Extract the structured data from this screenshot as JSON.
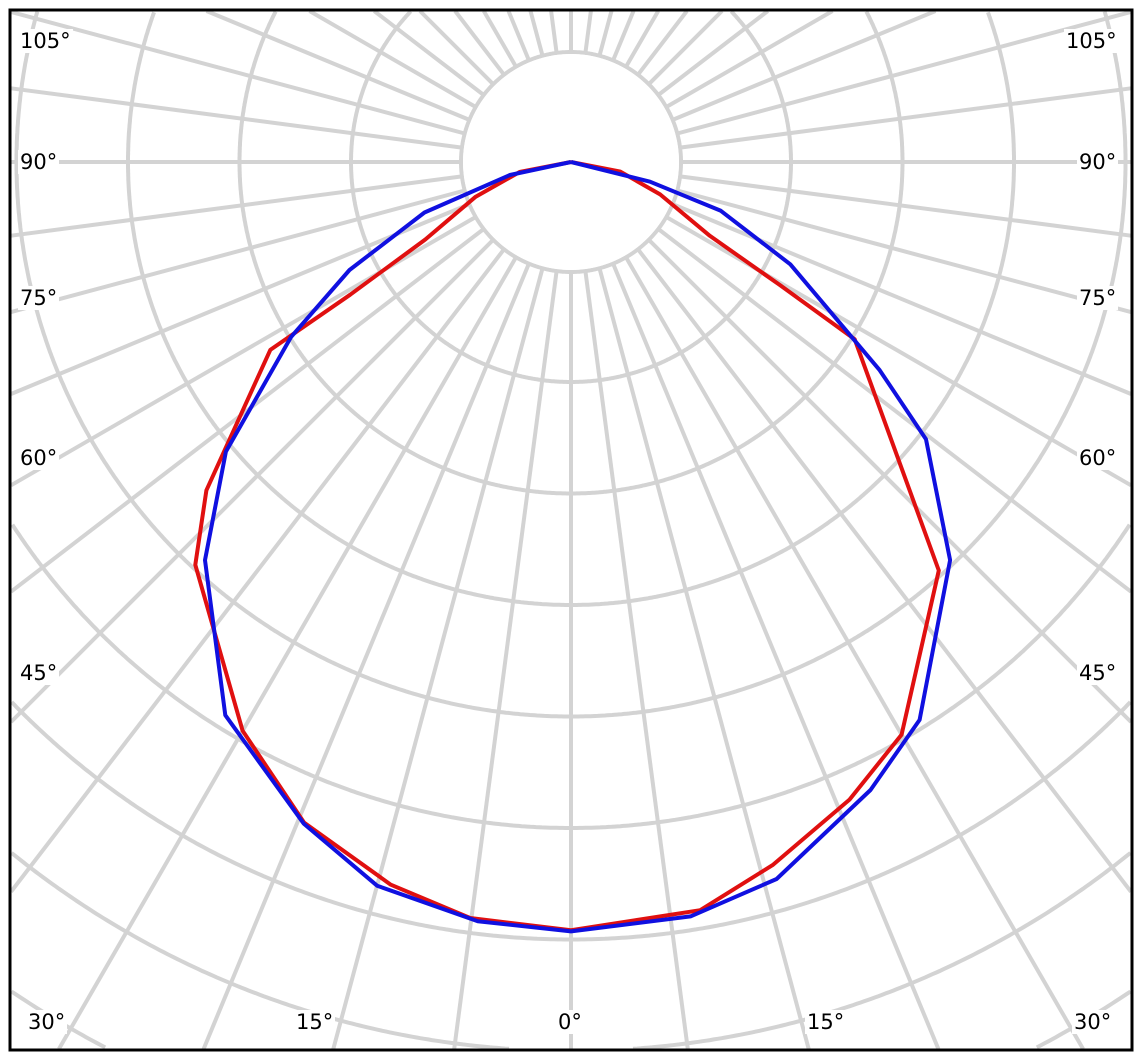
{
  "chart_data": {
    "type": "polar-line",
    "title": "",
    "grid": true,
    "angle_unit": "degrees",
    "angle_labels_left": [
      "105°",
      "90°",
      "75°",
      "60°",
      "45°"
    ],
    "angle_labels_right": [
      "105°",
      "90°",
      "75°",
      "60°",
      "45°"
    ],
    "angle_labels_bottom": [
      "30°",
      "15°",
      "0°",
      "15°",
      "30°"
    ],
    "series": [
      {
        "color": "#e01010",
        "points": [
          [
            -90,
            0
          ],
          [
            -79,
            0.47
          ],
          [
            -70,
            0.91
          ],
          [
            -62,
            1.48
          ],
          [
            -59,
            2.31
          ],
          [
            -58,
            3.18
          ],
          [
            -48,
            4.4
          ],
          [
            -43,
            4.94
          ],
          [
            -30,
            5.89
          ],
          [
            -22,
            6.39
          ],
          [
            -14,
            6.68
          ],
          [
            -7.6,
            6.84
          ],
          [
            0,
            6.89
          ],
          [
            9.8,
            6.81
          ],
          [
            16,
            6.56
          ],
          [
            23.6,
            6.24
          ],
          [
            30,
            5.93
          ],
          [
            42,
            4.93
          ],
          [
            58,
            3.0
          ],
          [
            59.5,
            2.17
          ],
          [
            62,
            1.41
          ],
          [
            70,
            0.85
          ],
          [
            79,
            0.45
          ],
          [
            90,
            0
          ]
        ]
      },
      {
        "color": "#1010e0",
        "points": [
          [
            -90,
            0
          ],
          [
            -78,
            0.56
          ],
          [
            -71,
            1.39
          ],
          [
            -64,
            2.21
          ],
          [
            -58,
            2.96
          ],
          [
            -50,
            4.04
          ],
          [
            -42.6,
            4.85
          ],
          [
            -32,
            5.85
          ],
          [
            -22,
            6.4
          ],
          [
            -15,
            6.72
          ],
          [
            -7,
            6.86
          ],
          [
            0,
            6.9
          ],
          [
            9,
            6.85
          ],
          [
            16,
            6.69
          ],
          [
            25.5,
            6.24
          ],
          [
            32,
            5.9
          ],
          [
            43.6,
            4.93
          ],
          [
            52,
            4.04
          ],
          [
            56,
            3.34
          ],
          [
            65,
            2.17
          ],
          [
            72,
            1.41
          ],
          [
            76,
            0.73
          ],
          [
            90,
            0
          ]
        ]
      }
    ]
  }
}
